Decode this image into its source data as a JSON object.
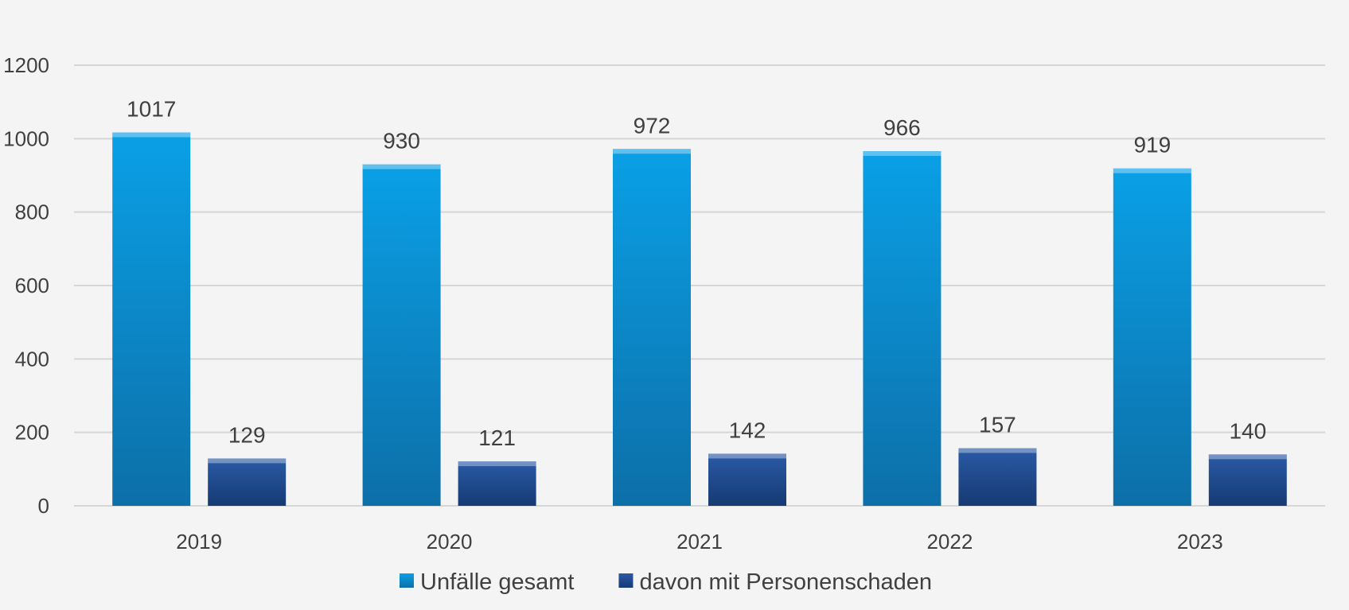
{
  "chart_data": {
    "type": "bar",
    "title": "",
    "xlabel": "",
    "ylabel": "",
    "categories": [
      "2019",
      "2020",
      "2021",
      "2022",
      "2023"
    ],
    "series": [
      {
        "name": "Unfälle gesamt",
        "values": [
          1017,
          930,
          972,
          966,
          919
        ],
        "color": "#0aa0e6",
        "color_dark": "#0d6fa8"
      },
      {
        "name": "davon mit Personenschaden",
        "values": [
          129,
          121,
          142,
          157,
          140
        ],
        "color": "#2a5aa6",
        "color_dark": "#163a73"
      }
    ],
    "ylim": [
      0,
      1200
    ],
    "y_ticks": [
      0,
      200,
      400,
      600,
      800,
      1000,
      1200
    ],
    "grid": true,
    "gridline_color": "#d6d6d6",
    "data_labels": true,
    "legend_position": "bottom-center",
    "background_color": "#f4f4f4"
  }
}
